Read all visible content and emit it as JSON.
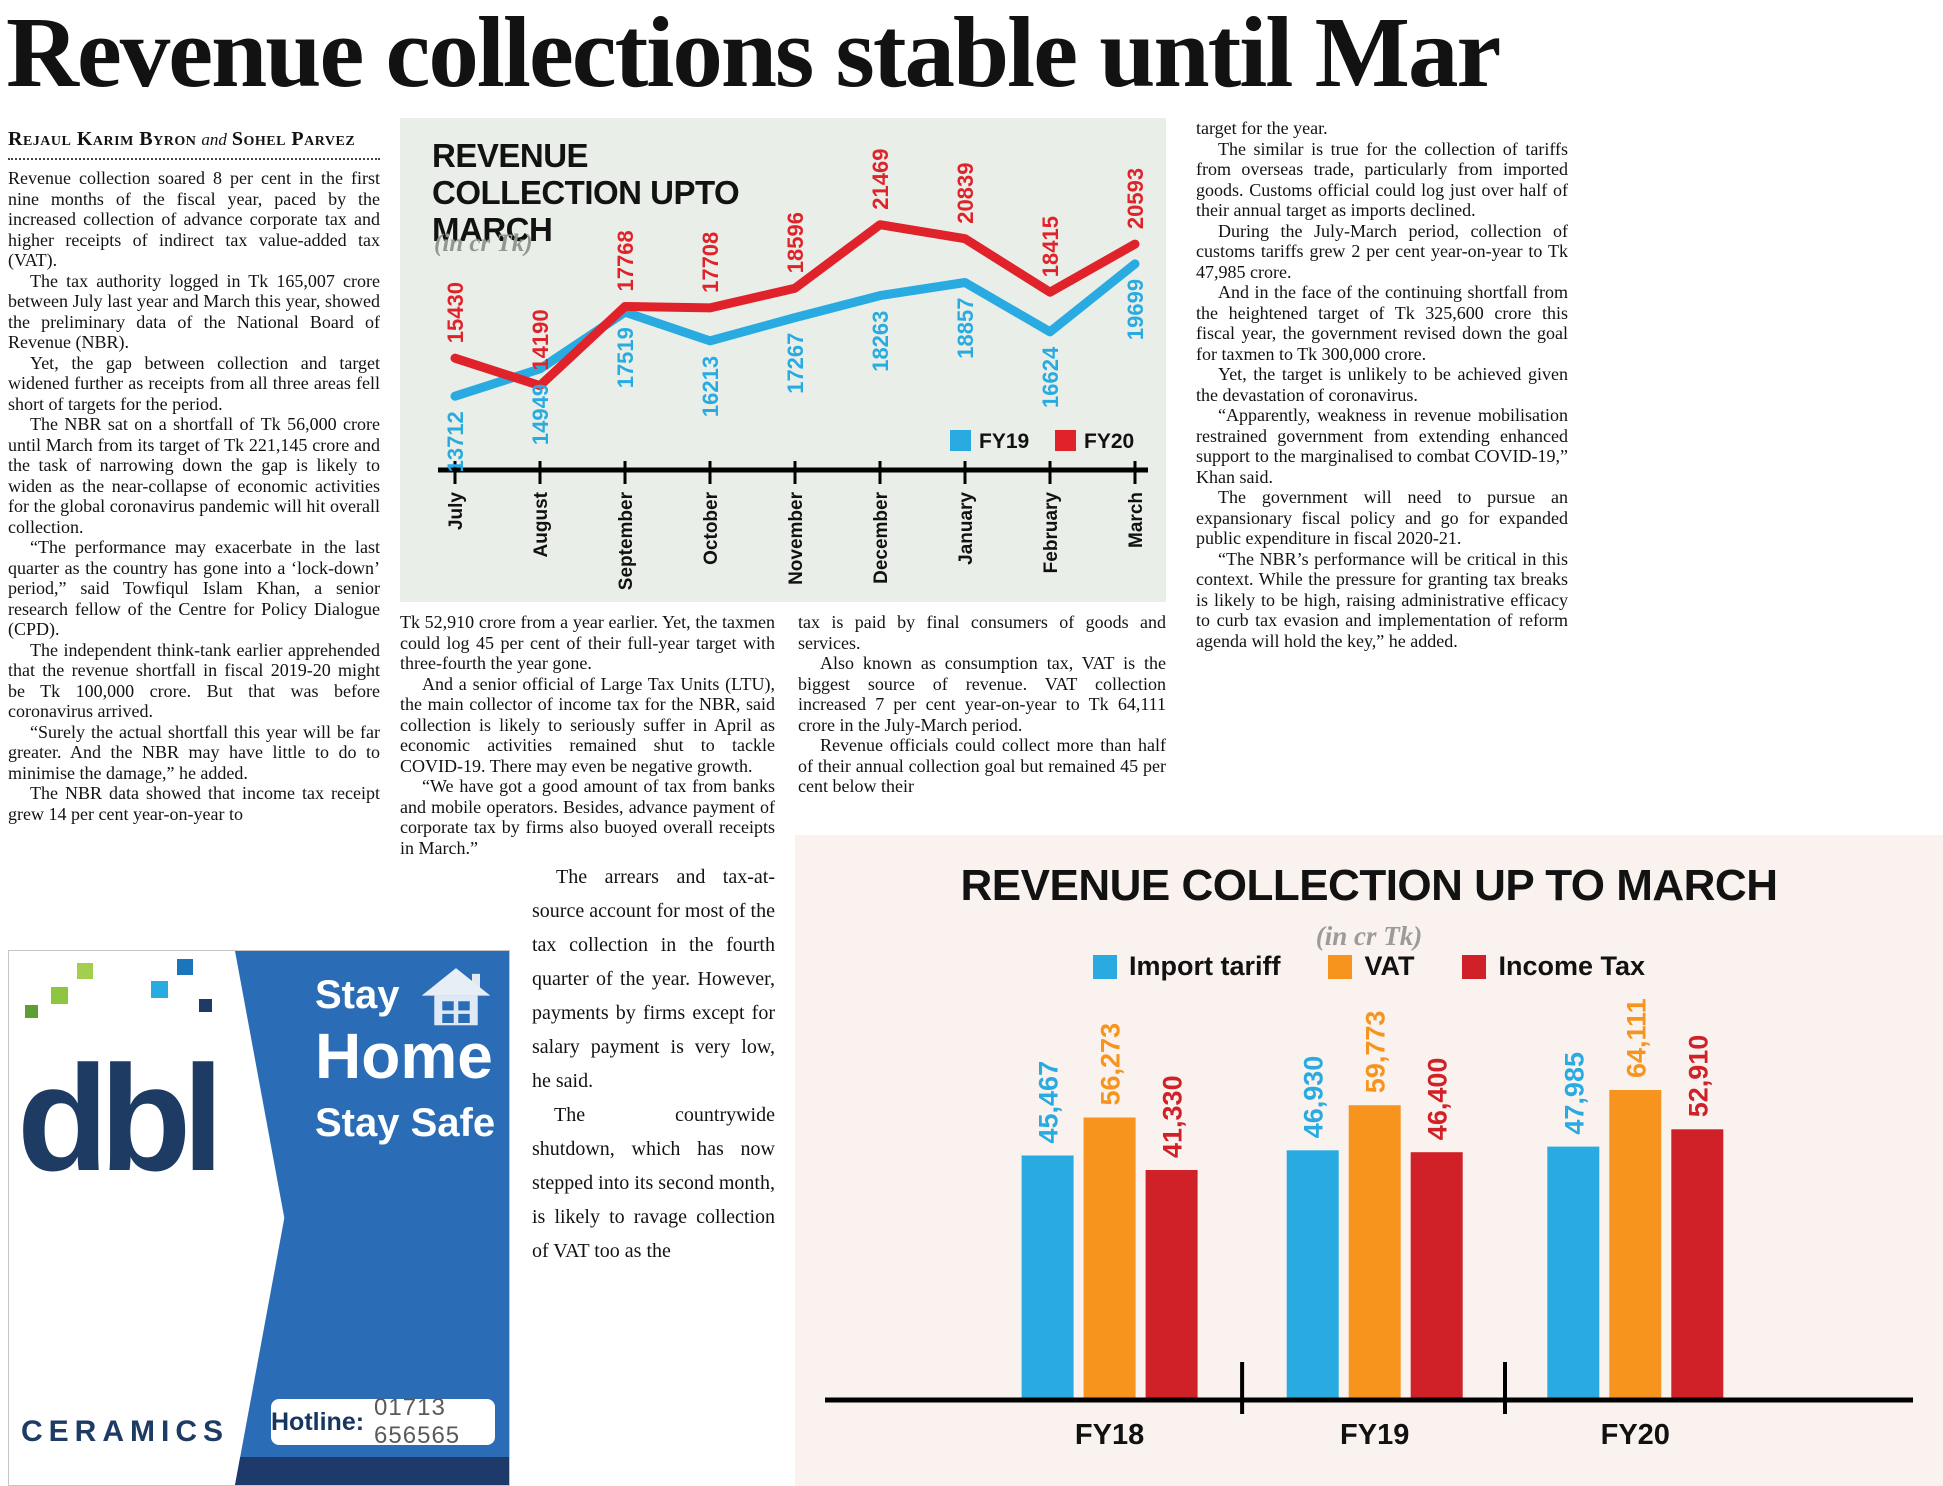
{
  "article": {
    "headline": "Revenue collections stable until Mar",
    "byline": {
      "author1": "Rejaul Karim Byron",
      "connector": "and",
      "author2": "Sohel Parvez"
    },
    "columns": {
      "left": [
        "Revenue collection soared 8 per cent in the first nine months of the fiscal year, paced by the increased collection of advance corporate tax and higher receipts of indirect tax value-added tax (VAT).",
        "The tax authority logged in Tk 165,007 crore between July last year and March this year, showed the preliminary data of the National Board of Revenue (NBR).",
        "Yet, the gap between collection and target widened further as receipts from all three areas fell short of targets for the period.",
        "The NBR sat on a shortfall of Tk 56,000 crore until March from its target of Tk 221,145 crore and the task of narrowing down the gap is likely to widen as the near-collapse of economic activities for the global coronavirus pandemic will hit overall collection.",
        "“The performance may exacerbate in the last quarter as the country has gone into a ‘lock-down’ period,” said Towfiqul Islam Khan, a senior research fellow of the Centre for Policy Dialogue (CPD).",
        "The independent think-tank earlier apprehended that the revenue shortfall in fiscal 2019-20 might be Tk 100,000 crore. But that was before coronavirus arrived.",
        "“Surely the actual shortfall this year will be far greater. And the NBR may have little to do to minimise the damage,” he added.",
        "The NBR data showed that income tax receipt grew 14 per cent year-on-year to"
      ],
      "mid_a": [
        "Tk 52,910 crore from a year earlier.  Yet, the taxmen could log 45 per cent of their full-year target with three-fourth the year gone.",
        "And a senior official of Large Tax Units (LTU), the main collector of income tax for the NBR, said collection is likely to seriously suffer in April as economic activities remained shut to tackle COVID-19. There may even be negative growth.",
        "“We have got a good amount of tax from banks and mobile operators. Besides, advance payment of corporate tax by firms also buoyed overall receipts in March.”"
      ],
      "mid_b": [
        "The arrears and tax-at-source account for most of the tax collection in the fourth quarter of the year. However, payments by firms except for salary payment is very low, he said.",
        "The countrywide shutdown, which has now stepped into its second month, is likely to ravage collection of VAT too as the"
      ],
      "mid2": [
        "tax is paid by final consumers of goods and services.",
        "Also known as consumption tax, VAT is the biggest source of revenue. VAT collection increased 7 per cent year-on-year to Tk 64,111 crore in the July-March period.",
        "Revenue officials could collect more than half of their annual collection goal but remained 45 per cent below their"
      ],
      "right": [
        "target for the year.",
        "The similar is true for the collection of tariffs from overseas trade, particularly from imported goods. Customs official could log just over half of their annual target as imports declined.",
        "During the July-March period, collection of customs tariffs grew 2 per cent year-on-year to Tk 47,985 crore.",
        "And in the face of the continuing shortfall from the heightened target of Tk 325,600 crore this fiscal year, the government revised down the goal for taxmen to Tk 300,000 crore.",
        "Yet, the target is unlikely to be achieved given the devastation of coronavirus.",
        "“Apparently, weakness in revenue mobilisation restrained government from extending enhanced support to the marginalised to combat COVID-19,” Khan said.",
        "The government will need to pursue an expansionary fiscal policy and go for expanded public expenditure in fiscal 2020-21.",
        "“The NBR’s performance will be critical in this context. While the pressure for granting tax breaks is likely to be high, raising administrative efficacy to curb tax evasion and implementation of reform agenda will hold the key,” he added."
      ]
    }
  },
  "chart_data": [
    {
      "type": "line",
      "title": "REVENUE COLLECTION UPTO MARCH",
      "subtitle": "(in cr Tk)",
      "categories": [
        "July",
        "August",
        "September",
        "October",
        "November",
        "December",
        "January",
        "February",
        "March"
      ],
      "series": [
        {
          "name": "FY19",
          "color": "#29abe2",
          "label_position": "below",
          "values": [
            13712,
            14949,
            17519,
            16213,
            17267,
            18263,
            18857,
            16624,
            19699
          ]
        },
        {
          "name": "FY20",
          "color": "#e0232b",
          "label_position": "above",
          "values": [
            15430,
            14190,
            17768,
            17708,
            18596,
            21469,
            20839,
            18415,
            20593
          ]
        }
      ],
      "ylim": [
        12500,
        22000
      ],
      "grid": false,
      "legend_position": "inside-right",
      "background": "#e9efe8"
    },
    {
      "type": "bar",
      "title": "REVENUE COLLECTION UP TO MARCH",
      "subtitle": "(in cr Tk)",
      "categories": [
        "FY18",
        "FY19",
        "FY20"
      ],
      "series": [
        {
          "name": "Import tariff",
          "color": "#29abe2",
          "values": [
            45467,
            46930,
            47985
          ]
        },
        {
          "name": "VAT",
          "color": "#f7941e",
          "values": [
            56273,
            59773,
            64111
          ]
        },
        {
          "name": "Income Tax",
          "color": "#cf2127",
          "values": [
            41330,
            46400,
            52910
          ]
        }
      ],
      "ylim": [
        0,
        64111
      ],
      "grid": false,
      "legend_position": "top-center",
      "background": "#f9f2ee"
    }
  ],
  "ad": {
    "brand": "dbl",
    "brand_sub": "CERAMICS",
    "line1": "Stay",
    "line2": "Home",
    "line3": "Stay Safe",
    "hotline_label": "Hotline:",
    "hotline_number": "01713 656565"
  }
}
